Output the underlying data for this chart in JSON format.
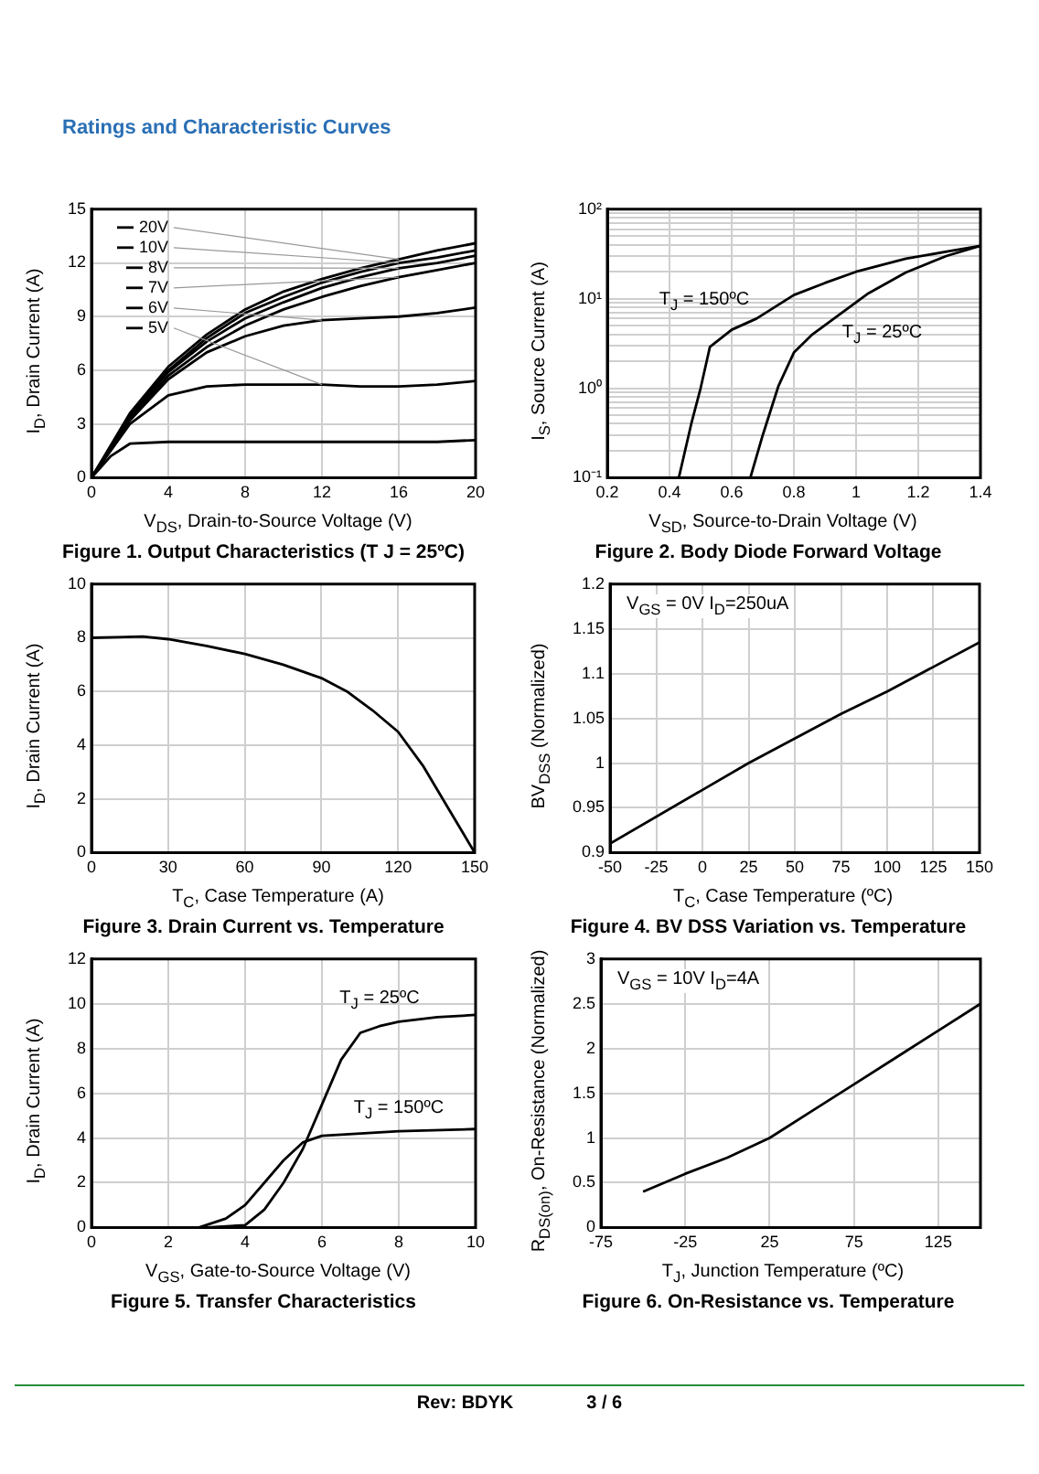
{
  "chart_data": [
    {
      "type": "line",
      "title": "Figure 1. Output Characteristics (T J = 25ºC)",
      "xlabel": "V$_{DS}$, Drain-to-Source Voltage (V)",
      "ylabel": "I$_{D}$, Drain Current (A)",
      "xlim": [
        0,
        20
      ],
      "xticks": [
        0,
        4,
        8,
        12,
        16,
        20
      ],
      "ylim": [
        0,
        15
      ],
      "yticks": [
        0,
        3,
        6,
        9,
        12,
        15
      ],
      "grid": true,
      "marker": "none",
      "legend": "top left",
      "annotations": [
        "Ratings and Characteristic Curves"
      ],
      "x": [
        0,
        1,
        2,
        4,
        6,
        8,
        10,
        12,
        14,
        16,
        18,
        20
      ],
      "series": [
        {
          "name": "20V",
          "color": "#000000",
          "values": [
            0,
            1.8,
            3.6,
            6.2,
            8.0,
            9.4,
            10.4,
            11.1,
            11.7,
            12.2,
            12.7,
            13.1
          ]
        },
        {
          "name": "10V",
          "color": "#000000",
          "values": [
            0,
            1.7,
            3.5,
            6.0,
            7.8,
            9.2,
            10.1,
            10.9,
            11.5,
            12.0,
            12.3,
            12.7
          ]
        },
        {
          "name": "8V",
          "color": "#000000",
          "values": [
            0,
            1.7,
            3.4,
            5.9,
            7.6,
            8.9,
            9.8,
            10.6,
            11.2,
            11.7,
            12.0,
            12.4
          ]
        },
        {
          "name": "7V",
          "color": "#000000",
          "values": [
            0,
            1.6,
            3.3,
            5.7,
            7.3,
            8.5,
            9.4,
            10.1,
            10.7,
            11.2,
            11.6,
            12.0
          ]
        },
        {
          "name": "6V",
          "color": "#000000",
          "values": [
            0,
            1.6,
            3.2,
            5.5,
            7.0,
            7.9,
            8.5,
            8.8,
            8.9,
            9.0,
            9.2,
            9.5
          ]
        },
        {
          "name": "5V",
          "color": "#000000",
          "values": [
            0,
            1.5,
            3.0,
            4.6,
            5.1,
            5.2,
            5.2,
            5.2,
            5.1,
            5.1,
            5.2,
            5.4
          ]
        },
        {
          "color": "#000000",
          "values": [
            0,
            1.2,
            1.9,
            2.0,
            2.0,
            2.0,
            2.0,
            2.0,
            2.0,
            2.0,
            2.0,
            2.1
          ]
        }
      ]
    },
    {
      "type": "line",
      "title": "Figure 2. Body Diode Forward Voltage",
      "xlabel": "V$_{SD}$, Source-to-Drain Voltage (V)",
      "ylabel": "I$_{S}$, Source Current (A)",
      "log": "y",
      "xlim": [
        0.2,
        1.4
      ],
      "xticks": [
        0.2,
        0.4,
        0.6,
        0.8,
        1,
        1.2,
        1.4
      ],
      "ylim": [
        0.1,
        100
      ],
      "yticks": [
        {
          "value": 0.1,
          "label": "10⁻¹"
        },
        {
          "value": 0.2,
          "label": null
        },
        {
          "value": 0.3,
          "label": null
        },
        {
          "value": 0.4,
          "label": null
        },
        {
          "value": 0.5,
          "label": null
        },
        {
          "value": 0.6,
          "label": null
        },
        {
          "value": 0.7,
          "label": null
        },
        {
          "value": 0.8,
          "label": null
        },
        {
          "value": 0.9,
          "label": null
        },
        {
          "value": 1,
          "label": "10⁰"
        },
        {
          "value": 2,
          "label": null
        },
        {
          "value": 3,
          "label": null
        },
        {
          "value": 4,
          "label": null
        },
        {
          "value": 5,
          "label": null
        },
        {
          "value": 6,
          "label": null
        },
        {
          "value": 7,
          "label": null
        },
        {
          "value": 8,
          "label": null
        },
        {
          "value": 9,
          "label": null
        },
        {
          "value": 10,
          "label": "10¹"
        },
        {
          "value": 20,
          "label": null
        },
        {
          "value": 30,
          "label": null
        },
        {
          "value": 40,
          "label": null
        },
        {
          "value": 50,
          "label": null
        },
        {
          "value": 60,
          "label": null
        },
        {
          "value": 70,
          "label": null
        },
        {
          "value": 80,
          "label": null
        },
        {
          "value": 90,
          "label": null
        },
        {
          "value": 100,
          "label": "10²"
        }
      ],
      "grid": true,
      "marker": "none",
      "series": [
        {
          "name": "T$_{J}$ = 150ºC",
          "color": "#000000",
          "x": [
            0.43,
            0.47,
            0.5,
            0.53,
            0.6,
            0.68,
            0.8,
            0.9,
            1.0,
            1.16,
            1.3,
            1.4
          ],
          "values": [
            0.1,
            0.4,
            1,
            2.9,
            4.5,
            6,
            11,
            15,
            20,
            28,
            34,
            39
          ]
        },
        {
          "name": "T$_{J}$ = 25ºC",
          "color": "#000000",
          "x": [
            0.66,
            0.7,
            0.75,
            0.8,
            0.86,
            0.92,
            1.04,
            1.16,
            1.29,
            1.4
          ],
          "values": [
            0.1,
            0.3,
            1.05,
            2.5,
            4,
            5.7,
            11.5,
            19.6,
            30,
            39
          ]
        }
      ]
    },
    {
      "type": "line",
      "title": "Figure 3. Drain Current vs. Temperature",
      "xlabel": "T$_{C}$, Case Temperature (A)",
      "ylabel": "I$_{D}$, Drain Current (A)",
      "xlim": [
        0,
        150
      ],
      "xticks": [
        0,
        30,
        60,
        90,
        120,
        150
      ],
      "ylim": [
        0,
        10
      ],
      "yticks": [
        0,
        2,
        4,
        6,
        8,
        10
      ],
      "grid": true,
      "marker": "none",
      "series": [
        {
          "color": "#000000",
          "x": [
            0,
            10,
            20,
            30,
            45,
            60,
            75,
            90,
            100,
            110,
            120,
            130,
            140,
            150
          ],
          "values": [
            8,
            8.02,
            8.05,
            7.95,
            7.7,
            7.4,
            7.0,
            6.5,
            6.0,
            5.3,
            4.5,
            3.2,
            1.6,
            0
          ]
        }
      ]
    },
    {
      "type": "line",
      "title": "Figure 4. BV DSS Variation vs. Temperature",
      "xlabel": "T$_{C}$, Case Temperature (ºC)",
      "ylabel": "BV$_{DSS}$ (Normalized)",
      "xlim": [
        -50,
        150
      ],
      "xticks": [
        -50,
        -25,
        0,
        25,
        50,
        75,
        100,
        125,
        150
      ],
      "ylim": [
        0.9,
        1.2
      ],
      "yticks": [
        0.9,
        0.95,
        1,
        1.05,
        1.1,
        1.15,
        1.2
      ],
      "grid": true,
      "marker": "none",
      "annotations": [
        "V$_{GS}$ = 0V I$_{D}$=250uA"
      ],
      "series": [
        {
          "color": "#000000",
          "x": [
            -50,
            0,
            25,
            75,
            100,
            150
          ],
          "values": [
            0.91,
            0.97,
            1.0,
            1.055,
            1.08,
            1.135
          ]
        }
      ]
    },
    {
      "type": "line",
      "title": "Figure 5. Transfer Characteristics",
      "xlabel": "V$_{GS}$, Gate-to-Source Voltage (V)",
      "ylabel": "I$_{D}$, Drain Current (A)",
      "xlim": [
        0,
        10
      ],
      "xticks": [
        0,
        2,
        4,
        6,
        8,
        10
      ],
      "ylim": [
        0,
        12
      ],
      "yticks": [
        0,
        2,
        4,
        6,
        8,
        10,
        12
      ],
      "grid": true,
      "marker": "none",
      "series": [
        {
          "name": "T$_{J}$ = 25ºC",
          "color": "#000000",
          "x": [
            0,
            3,
            4,
            4.5,
            5,
            5.5,
            6,
            6.5,
            7,
            7.5,
            8,
            9,
            10
          ],
          "values": [
            0,
            0,
            0.1,
            0.8,
            2,
            3.5,
            5.5,
            7.5,
            8.7,
            9.0,
            9.2,
            9.4,
            9.5
          ]
        },
        {
          "name": "T$_{J}$ = 150ºC",
          "color": "#000000",
          "x": [
            0,
            2.8,
            3.5,
            4,
            4.5,
            5,
            5.5,
            6,
            7,
            8,
            10
          ],
          "values": [
            0,
            0,
            0.4,
            1,
            2,
            3,
            3.8,
            4.1,
            4.2,
            4.3,
            4.4
          ]
        }
      ]
    },
    {
      "type": "line",
      "title": "Figure 6. On-Resistance vs. Temperature",
      "xlabel": "T$_{J}$, Junction Temperature (ºC)",
      "ylabel": "R$_{DS(on)}$, On-Resistance (Normalized)",
      "xlim": [
        -75,
        150
      ],
      "xticks": [
        -75,
        -25,
        25,
        75,
        125
      ],
      "ylim": [
        0,
        3
      ],
      "yticks": [
        0,
        0.5,
        1,
        1.5,
        2,
        2.5,
        3
      ],
      "grid": true,
      "marker": "none",
      "annotations": [
        "V$_{GS}$ = 10V I$_{D}$=4A",
        "Rev: BDYK",
        "3 / 6"
      ],
      "series": [
        {
          "color": "#000000",
          "x": [
            -50,
            -25,
            0,
            25,
            50,
            75,
            100,
            125,
            150
          ],
          "values": [
            0.4,
            0.6,
            0.78,
            1.0,
            1.3,
            1.6,
            1.9,
            2.2,
            2.5
          ]
        }
      ]
    }
  ]
}
